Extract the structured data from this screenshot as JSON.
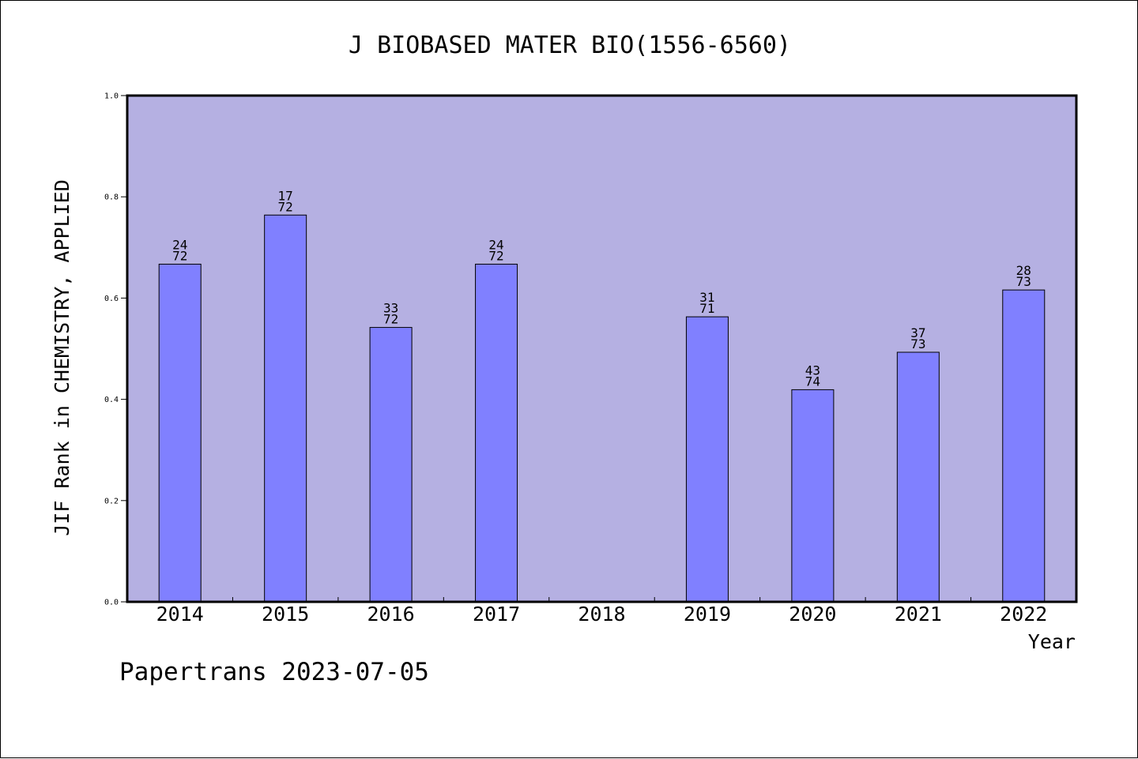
{
  "chart_data": {
    "type": "bar",
    "title": "J BIOBASED MATER BIO(1556-6560)",
    "xlabel": "Year",
    "ylabel": "JIF Rank in CHEMISTRY, APPLIED",
    "ylim": [
      0,
      1.0
    ],
    "yticks": [
      "0.0",
      "0.2",
      "0.4",
      "0.6",
      "0.8",
      "1.0"
    ],
    "categories": [
      "2014",
      "2015",
      "2016",
      "2017",
      "2018",
      "2019",
      "2020",
      "2021",
      "2022"
    ],
    "values": [
      0.667,
      0.764,
      0.542,
      0.667,
      null,
      0.563,
      0.419,
      0.493,
      0.616
    ],
    "rank_labels": [
      {
        "rank": "24",
        "total": "72"
      },
      {
        "rank": "17",
        "total": "72"
      },
      {
        "rank": "33",
        "total": "72"
      },
      {
        "rank": "24",
        "total": "72"
      },
      null,
      {
        "rank": "31",
        "total": "71"
      },
      {
        "rank": "43",
        "total": "74"
      },
      {
        "rank": "37",
        "total": "73"
      },
      {
        "rank": "28",
        "total": "73"
      }
    ],
    "grid": false,
    "colors": {
      "plot_background": "#b5b0e2",
      "bar_fill": "#8080ff",
      "bar_stroke": "#000000"
    }
  },
  "footer": {
    "note": "Papertrans 2023-07-05"
  }
}
